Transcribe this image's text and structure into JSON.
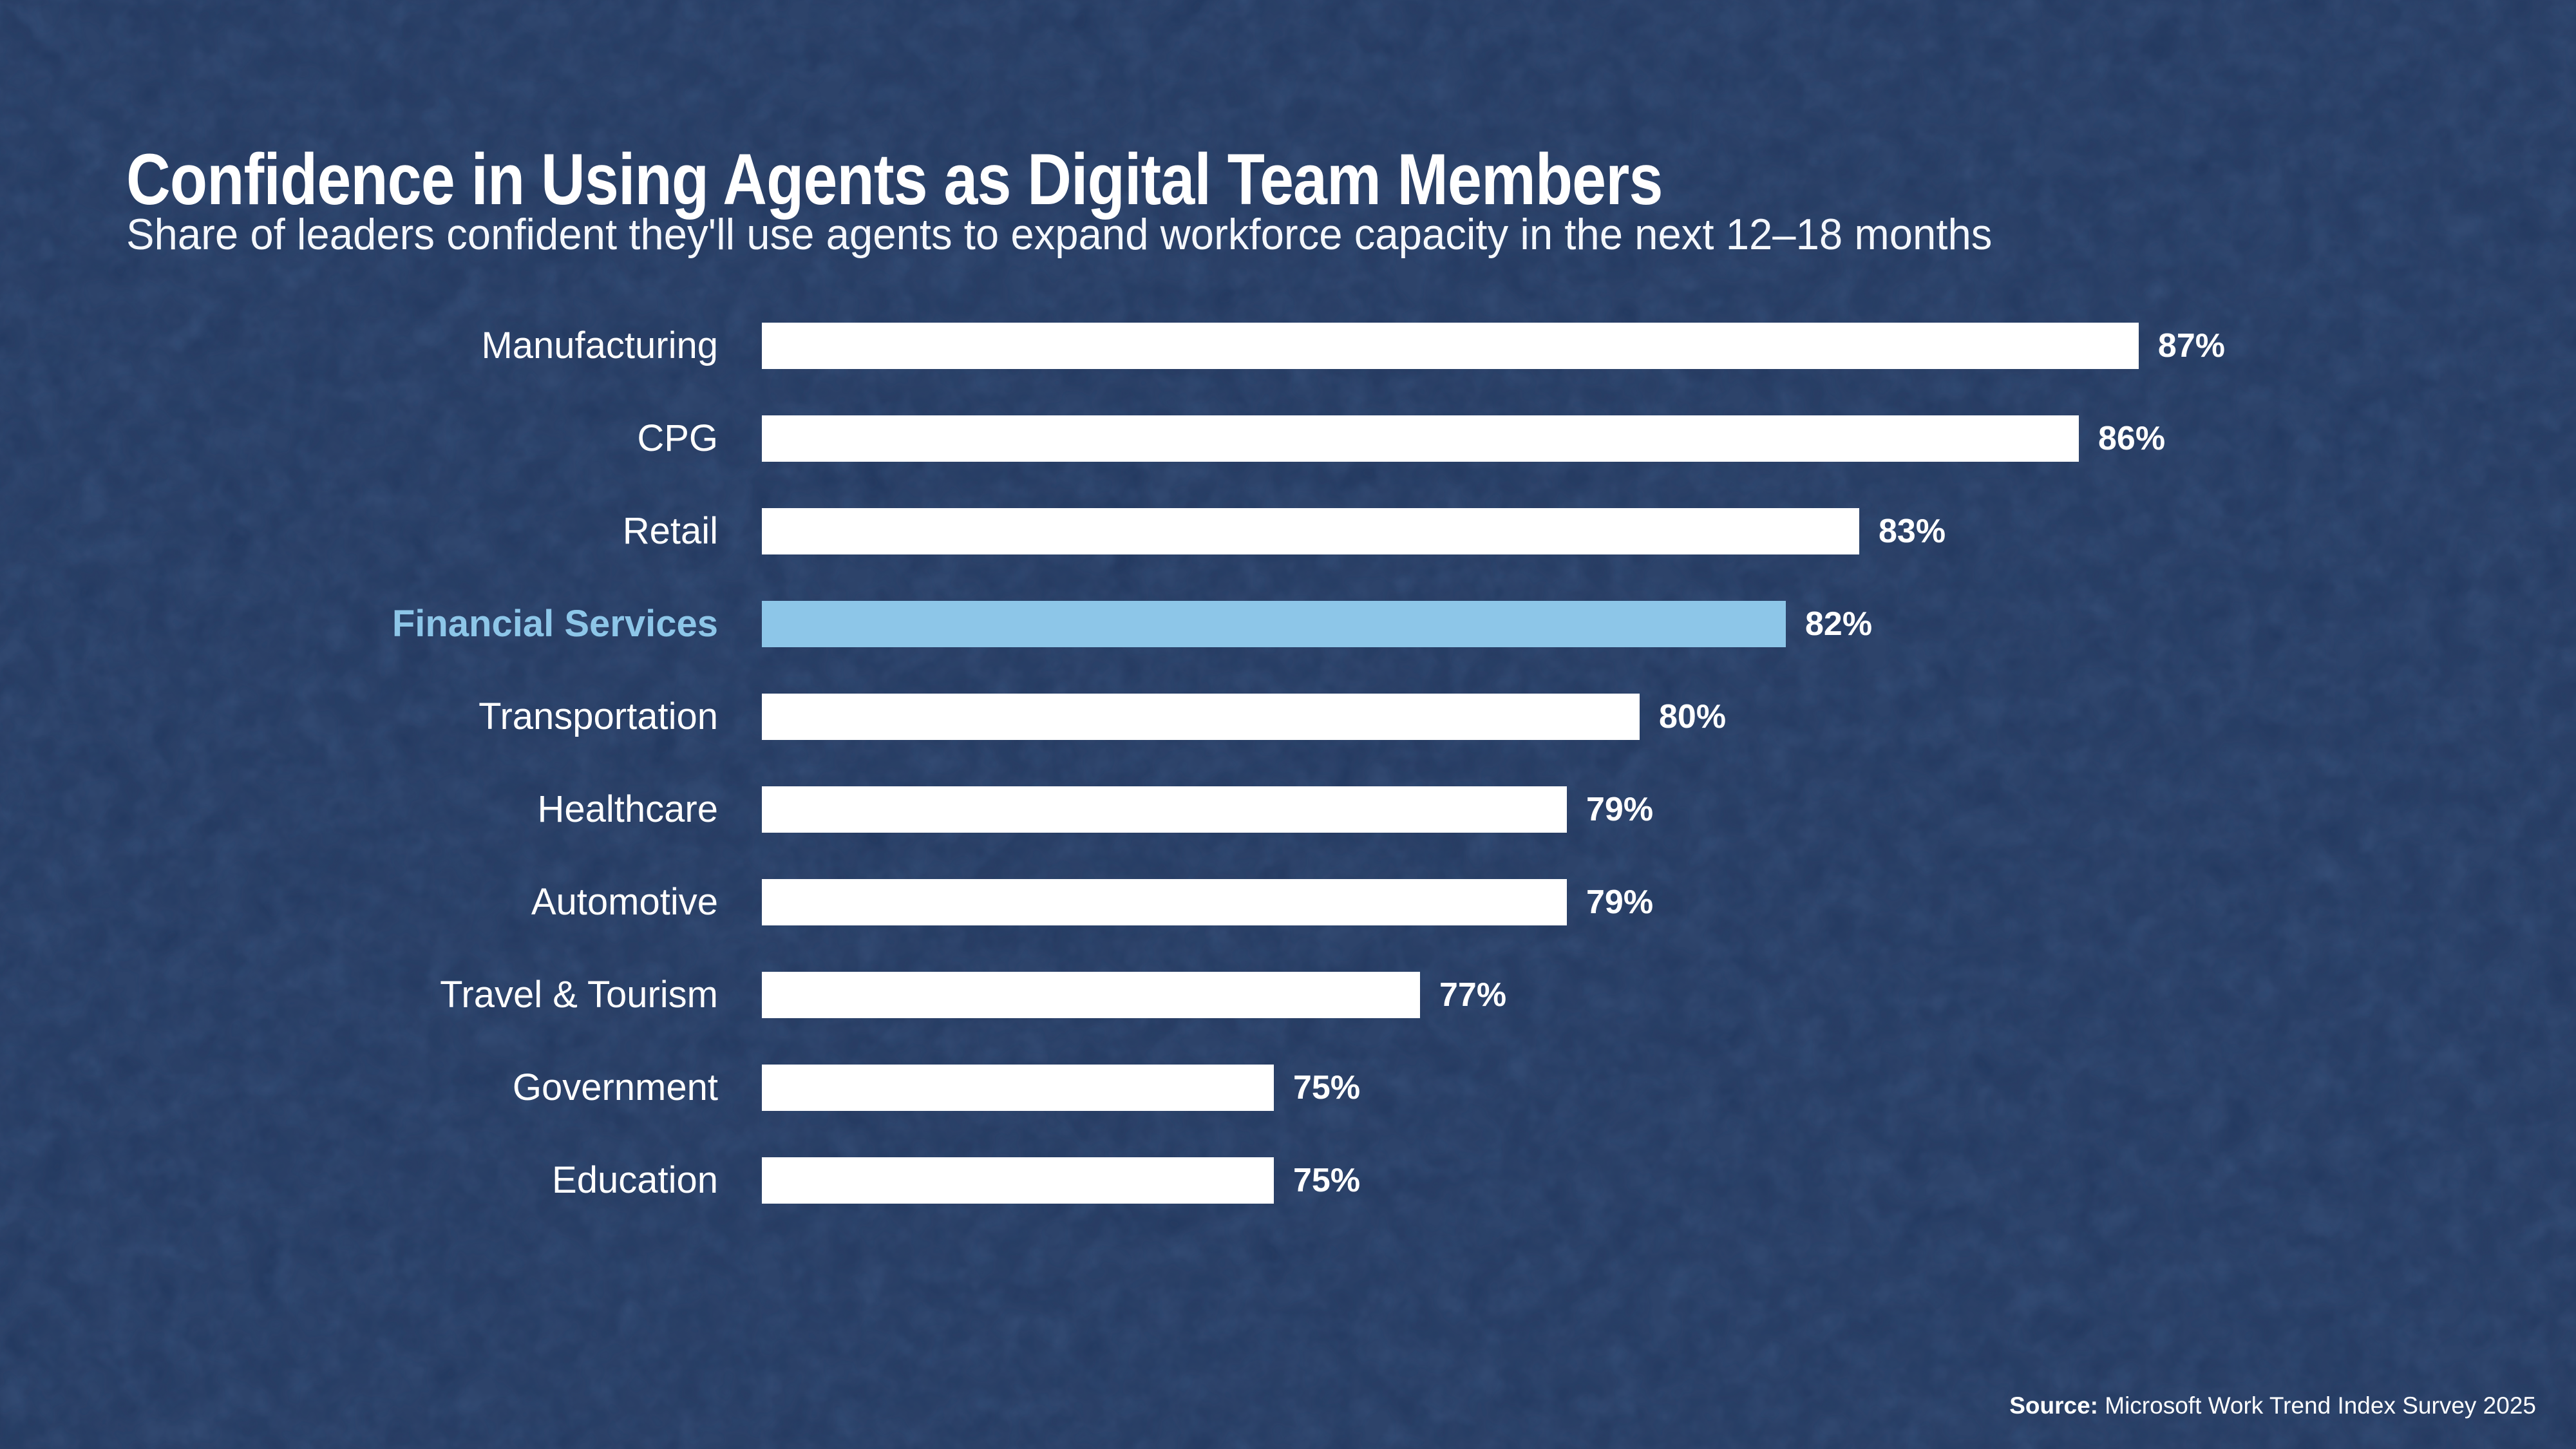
{
  "page": {
    "background_color": "#2d436a",
    "texture": "mottled-paper"
  },
  "header": {
    "title": "Confidence in Using Agents as Digital Team Members",
    "subtitle": "Share of leaders confident they'll use agents to expand workforce capacity in the next 12–18 months"
  },
  "chart_data": {
    "type": "bar",
    "orientation": "horizontal",
    "title": "Confidence in Using Agents as Digital Team Members",
    "subtitle": "Share of leaders confident they'll use agents to expand workforce capacity in the next 12–18 months",
    "categories": [
      "Manufacturing",
      "CPG",
      "Retail",
      "Financial Services",
      "Transportation",
      "Healthcare",
      "Automotive",
      "Travel & Tourism",
      "Government",
      "Education"
    ],
    "values": [
      87,
      86,
      83,
      82,
      80,
      79,
      79,
      77,
      75,
      75
    ],
    "value_labels": [
      "87%",
      "86%",
      "83%",
      "82%",
      "80%",
      "79%",
      "79%",
      "77%",
      "75%",
      "75%"
    ],
    "value_suffix": "%",
    "highlight_category": "Financial Services",
    "xlim": [
      68,
      88
    ],
    "grid": false,
    "legend": false,
    "value_labels_position": "end-of-bar",
    "colors": {
      "bar": "#ffffff",
      "highlight_bar": "#8dc6e8",
      "category_label": "#ffffff",
      "highlight_label": "#8dc6e8",
      "value_label": "#ffffff",
      "background": "#2d436a"
    }
  },
  "source": {
    "prefix": "Source:",
    "text": "Microsoft Work Trend Index Survey 2025"
  }
}
